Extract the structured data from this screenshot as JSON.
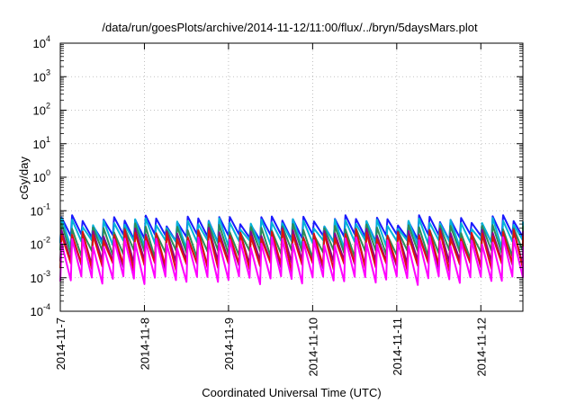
{
  "chart_data": {
    "type": "line",
    "title": "/data/run/goesPlots/archive/2014-11-12/11:00/flux/../bryn/5daysMars.plot",
    "xlabel": "Coordinated Universal Time (UTC)",
    "ylabel": "cGy/day",
    "y_scale": "log",
    "ylim_exponents": [
      -4,
      4
    ],
    "y_tick_base": "10",
    "y_tick_exponents": [
      "-4",
      "-3",
      "-2",
      "-1",
      "0",
      "1",
      "2",
      "3",
      "4"
    ],
    "x_range_days": [
      0,
      5.5
    ],
    "x_tick_labels": [
      "2014-11-7",
      "2014-11-8",
      "2014-11-9",
      "2014-11-10",
      "2014-11-11",
      "2014-11-12"
    ],
    "grid": true,
    "cycles_per_day": 8,
    "series_envelope": [
      {
        "color": "#1a1aff",
        "peak": 0.055,
        "trough": 0.018
      },
      {
        "color": "#00b4d8",
        "peak": 0.045,
        "trough": 0.012
      },
      {
        "color": "#2e8b57",
        "peak": 0.03,
        "trough": 0.006
      },
      {
        "color": "#8b008b",
        "peak": 0.022,
        "trough": 0.003
      },
      {
        "color": "#dd1111",
        "peak": 0.02,
        "trough": 0.0025
      },
      {
        "color": "#ff00ff",
        "peak": 0.012,
        "trough": 0.001
      }
    ]
  }
}
